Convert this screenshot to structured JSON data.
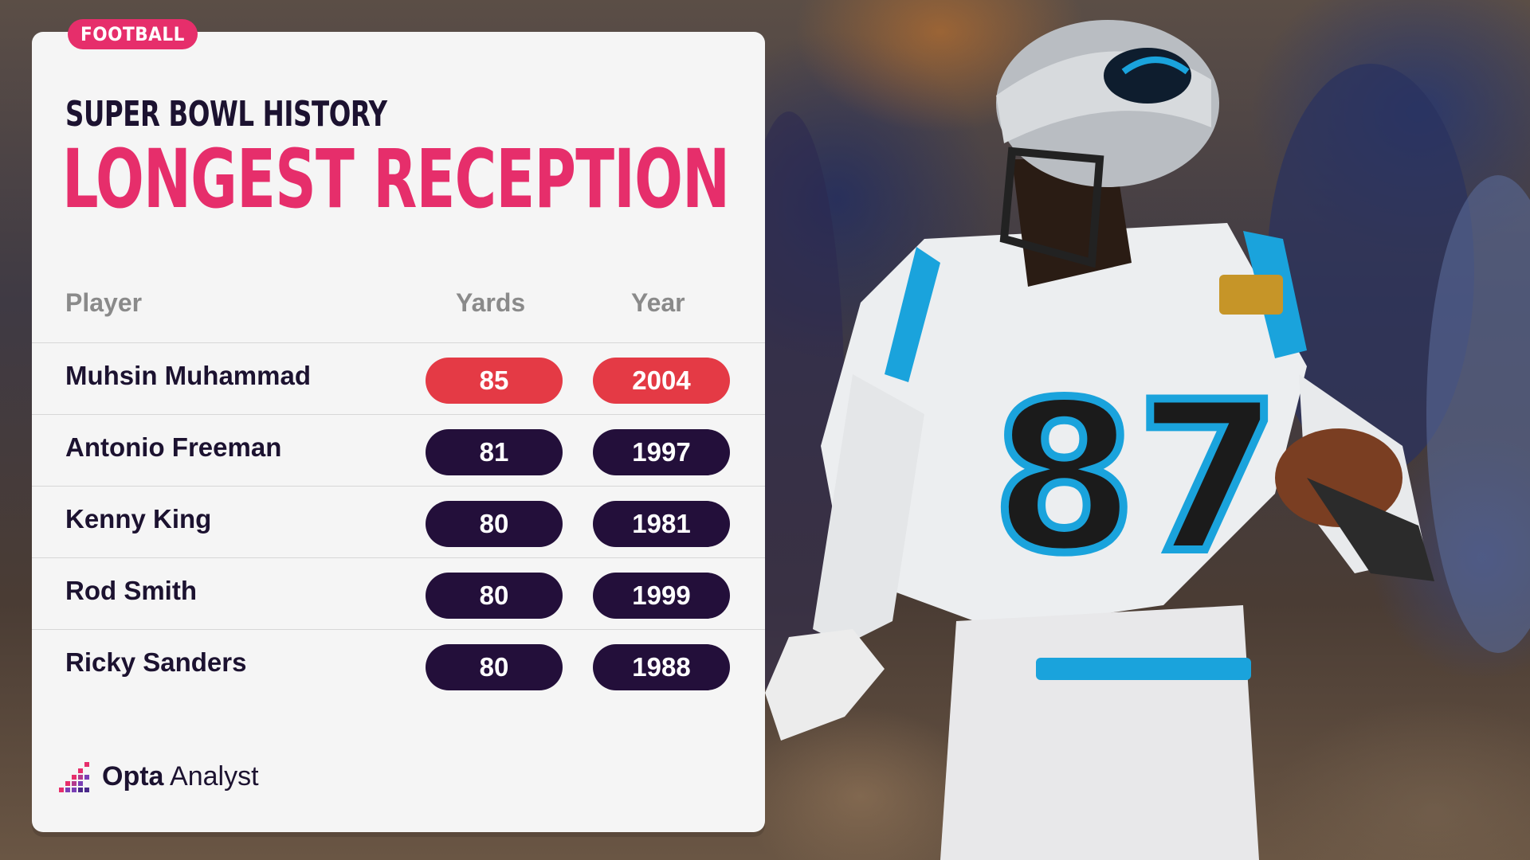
{
  "tag": "FOOTBALL",
  "subtitle": "SUPER BOWL HISTORY",
  "title": "LONGEST RECEPTION",
  "columns": {
    "player": "Player",
    "yards": "Yards",
    "year": "Year"
  },
  "rows": [
    {
      "player": "Muhsin Muhammad",
      "yards": "85",
      "year": "2004",
      "highlight": true
    },
    {
      "player": "Antonio Freeman",
      "yards": "81",
      "year": "1997",
      "highlight": false
    },
    {
      "player": "Kenny King",
      "yards": "80",
      "year": "1981",
      "highlight": false
    },
    {
      "player": "Rod Smith",
      "yards": "80",
      "year": "1999",
      "highlight": false
    },
    {
      "player": "Ricky Sanders",
      "yards": "80",
      "year": "1988",
      "highlight": false
    }
  ],
  "brand": {
    "bold": "Opta",
    "light": "Analyst"
  },
  "photo": {
    "jersey_number": "87"
  },
  "colors": {
    "accent_pink": "#e62e6b",
    "highlight_red": "#e43a45",
    "dark_purple": "#230f3a",
    "panther_blue": "#1aa3dc"
  }
}
